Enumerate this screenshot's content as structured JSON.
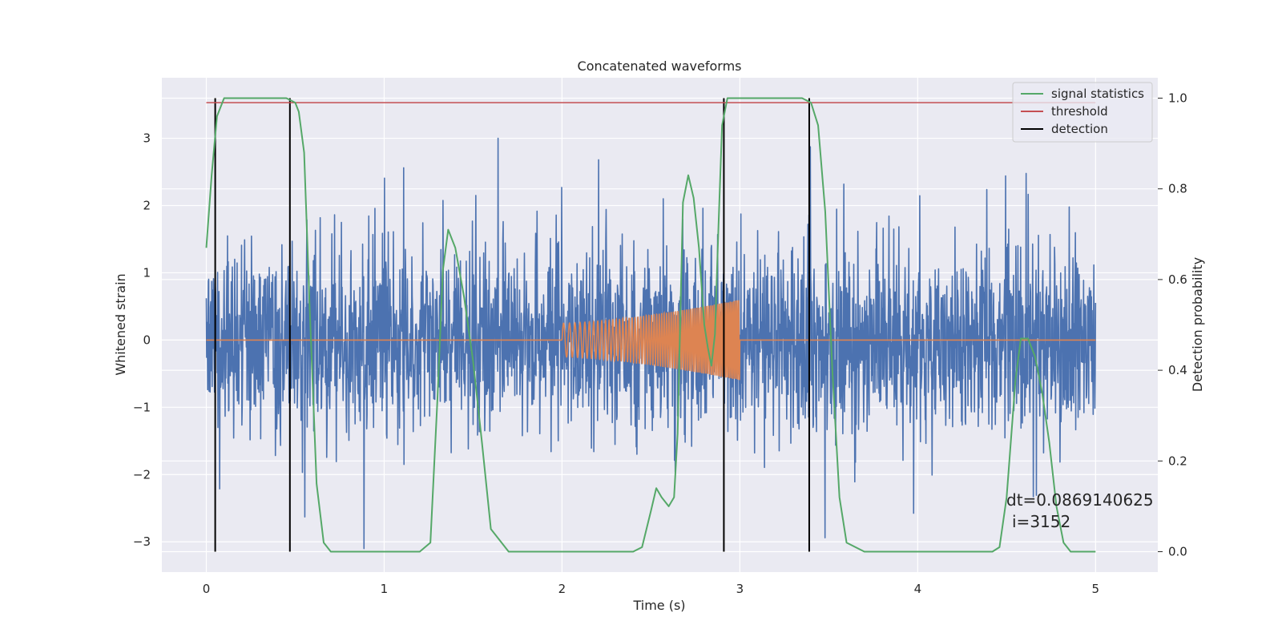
{
  "chart_data": {
    "type": "line",
    "title": "Concatenated waveforms",
    "xlabel": "Time (s)",
    "ylabel": "Whitened strain",
    "y2label": "Detection probability",
    "xlim": [
      -0.25,
      5.35
    ],
    "ylim": [
      -3.45,
      3.9
    ],
    "y2lim": [
      -0.045,
      1.045
    ],
    "x_ticks": [
      0,
      1,
      2,
      3,
      4,
      5
    ],
    "x_tick_labels": [
      "0",
      "1",
      "2",
      "3",
      "4",
      "5"
    ],
    "y_ticks": [
      -3,
      -2,
      -1,
      0,
      1,
      2,
      3
    ],
    "y_tick_labels": [
      "−3",
      "−2",
      "−1",
      "0",
      "1",
      "2",
      "3"
    ],
    "y2_ticks": [
      0.0,
      0.2,
      0.4,
      0.6,
      0.8,
      1.0
    ],
    "y2_tick_labels": [
      "0.0",
      "0.2",
      "0.4",
      "0.6",
      "0.8",
      "1.0"
    ],
    "grid": true,
    "legend_position": "top-right",
    "series": [
      {
        "name": "",
        "axis": "left",
        "color": "#4c72b0",
        "kind": "noise",
        "x_range": [
          0,
          5
        ],
        "amplitude_range": [
          -3.1,
          3.0
        ]
      },
      {
        "name": "",
        "axis": "left",
        "color": "#dd8452",
        "kind": "chirp",
        "baseline": 0,
        "x_range": [
          0,
          5
        ],
        "chirp_x_range": [
          2.0,
          3.0
        ],
        "chirp_amplitude": [
          0.25,
          0.6
        ]
      },
      {
        "name": "signal statistics",
        "axis": "right",
        "color": "#55a868",
        "x": [
          0,
          0.03,
          0.06,
          0.1,
          0.15,
          0.3,
          0.45,
          0.5,
          0.52,
          0.55,
          0.58,
          0.62,
          0.66,
          0.7,
          0.8,
          0.9,
          1.0,
          1.1,
          1.2,
          1.26,
          1.3,
          1.33,
          1.36,
          1.4,
          1.45,
          1.5,
          1.55,
          1.6,
          1.7,
          1.8,
          2.0,
          2.2,
          2.4,
          2.45,
          2.5,
          2.53,
          2.56,
          2.6,
          2.63,
          2.65,
          2.68,
          2.71,
          2.74,
          2.77,
          2.8,
          2.82,
          2.84,
          2.86,
          2.88,
          2.9,
          2.93,
          3.0,
          3.2,
          3.35,
          3.4,
          3.44,
          3.48,
          3.52,
          3.56,
          3.6,
          3.7,
          3.9,
          4.2,
          4.42,
          4.46,
          4.5,
          4.55,
          4.58,
          4.62,
          4.66,
          4.7,
          4.74,
          4.78,
          4.82,
          4.86,
          5.0
        ],
        "y": [
          0.67,
          0.83,
          0.96,
          1.0,
          1.0,
          1.0,
          1.0,
          0.99,
          0.97,
          0.88,
          0.55,
          0.15,
          0.02,
          0.0,
          0.0,
          0.0,
          0.0,
          0.0,
          0.0,
          0.02,
          0.34,
          0.62,
          0.71,
          0.67,
          0.56,
          0.42,
          0.24,
          0.05,
          0.0,
          0.0,
          0.0,
          0.0,
          0.0,
          0.01,
          0.09,
          0.14,
          0.12,
          0.1,
          0.12,
          0.26,
          0.77,
          0.83,
          0.78,
          0.67,
          0.5,
          0.45,
          0.41,
          0.48,
          0.72,
          0.94,
          1.0,
          1.0,
          1.0,
          1.0,
          0.99,
          0.94,
          0.75,
          0.4,
          0.12,
          0.02,
          0.0,
          0.0,
          0.0,
          0.0,
          0.01,
          0.12,
          0.38,
          0.47,
          0.47,
          0.43,
          0.35,
          0.24,
          0.1,
          0.02,
          0.0,
          0.0
        ]
      },
      {
        "name": "threshold",
        "axis": "right",
        "color": "#c44e52",
        "x": [
          0,
          5
        ],
        "y": [
          0.99,
          0.99
        ]
      },
      {
        "name": "detection",
        "axis": "right",
        "color": "#000000",
        "kind": "vlines",
        "x": [
          0.05,
          0.47,
          2.91,
          3.39
        ],
        "y_range": [
          0.0,
          1.0
        ]
      }
    ],
    "annotations": [
      "dt=0.0869140625",
      "i=3152"
    ]
  }
}
